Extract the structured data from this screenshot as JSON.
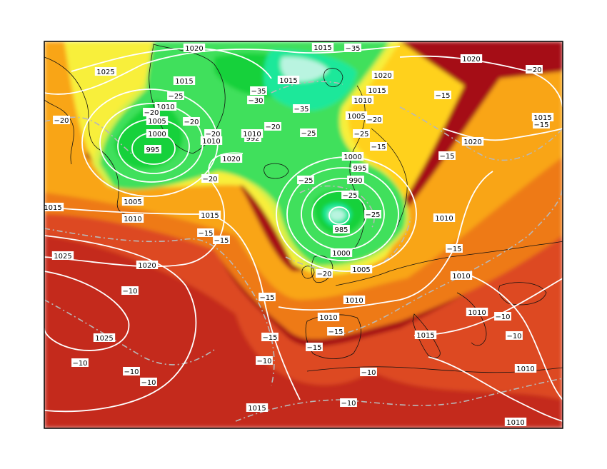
{
  "colors": {
    "field": [
      "#a50f15",
      "#c42a1d",
      "#dd4a20",
      "#ee7a18",
      "#f9a515",
      "#ffd11a",
      "#f8ef3a",
      "#d8f04a",
      "#3fe05c",
      "#12d13a",
      "#1ee89a",
      "#b9f4e0"
    ],
    "isobar": "#ffffff",
    "isotherm": "#b8b8b8",
    "coast": "#111111",
    "frame": "#000000"
  },
  "pressure_labels": [
    "1025",
    "1020",
    "1015",
    "1010",
    "1005",
    "1000",
    "995",
    "990",
    "985",
    "992"
  ],
  "temperature_labels": [
    "−10",
    "−15",
    "−20",
    "−25",
    "−30",
    "−35"
  ],
  "labels": [
    {
      "id": "p1025-nw",
      "text": "1025"
    },
    {
      "id": "p1020-top-left",
      "text": "1020"
    },
    {
      "id": "p1015-top",
      "text": "1015"
    },
    {
      "id": "t-35-top",
      "text": "−35"
    },
    {
      "id": "p1020-ne",
      "text": "1020"
    },
    {
      "id": "t-20-ne",
      "text": "−20"
    },
    {
      "id": "p1015-greenland",
      "text": "1015"
    },
    {
      "id": "p1015-b",
      "text": "1015"
    },
    {
      "id": "t-35-a",
      "text": "−35"
    },
    {
      "id": "t-30-a",
      "text": "−30"
    },
    {
      "id": "t-25-a",
      "text": "−25"
    },
    {
      "id": "p1010-a",
      "text": "1010"
    },
    {
      "id": "t-20-a",
      "text": "−20"
    },
    {
      "id": "p1005-a",
      "text": "1005"
    },
    {
      "id": "t-20-b",
      "text": "−20"
    },
    {
      "id": "t-20-c",
      "text": "−20"
    },
    {
      "id": "t-20-d",
      "text": "−20"
    },
    {
      "id": "p1000-a",
      "text": "1000"
    },
    {
      "id": "p995-a",
      "text": "995"
    },
    {
      "id": "p1010-b",
      "text": "1010"
    },
    {
      "id": "p992",
      "text": "992"
    },
    {
      "id": "p1010-c",
      "text": "1010"
    },
    {
      "id": "t-20-e",
      "text": "−20"
    },
    {
      "id": "t-35-b",
      "text": "−35"
    },
    {
      "id": "t-25-b",
      "text": "−25"
    },
    {
      "id": "p1020-b",
      "text": "1020"
    },
    {
      "id": "p1015-c",
      "text": "1015"
    },
    {
      "id": "p1010-d",
      "text": "1010"
    },
    {
      "id": "t-15-a",
      "text": "−15"
    },
    {
      "id": "p1005-b",
      "text": "1005"
    },
    {
      "id": "t-20-f",
      "text": "−20"
    },
    {
      "id": "t-25-c",
      "text": "−25"
    },
    {
      "id": "t-15-b",
      "text": "−15"
    },
    {
      "id": "p1000-b",
      "text": "1000"
    },
    {
      "id": "p995-b",
      "text": "995"
    },
    {
      "id": "p990",
      "text": "990"
    },
    {
      "id": "t-25-d",
      "text": "−25"
    },
    {
      "id": "t-25-e",
      "text": "−25"
    },
    {
      "id": "p985",
      "text": "985"
    },
    {
      "id": "p1020-c",
      "text": "1020"
    },
    {
      "id": "t-20-g",
      "text": "−20"
    },
    {
      "id": "p1015-d",
      "text": "1015"
    },
    {
      "id": "p1005-c",
      "text": "1005"
    },
    {
      "id": "p1010-e",
      "text": "1010"
    },
    {
      "id": "p1015-west",
      "text": "1015"
    },
    {
      "id": "p1015-e",
      "text": "1015"
    },
    {
      "id": "t-15-c",
      "text": "−15"
    },
    {
      "id": "t-15-d",
      "text": "−15"
    },
    {
      "id": "p1025-west",
      "text": "1025"
    },
    {
      "id": "p1020-d",
      "text": "1020"
    },
    {
      "id": "t-25-f",
      "text": "−25"
    },
    {
      "id": "p1000-c",
      "text": "1000"
    },
    {
      "id": "t-20-h",
      "text": "−20"
    },
    {
      "id": "p1005-d",
      "text": "1005"
    },
    {
      "id": "t-10-a",
      "text": "−10"
    },
    {
      "id": "t-15-e",
      "text": "−15"
    },
    {
      "id": "p1010-f",
      "text": "1010"
    },
    {
      "id": "t-15-f",
      "text": "−15"
    },
    {
      "id": "p1010-g",
      "text": "1010"
    },
    {
      "id": "p1010-h",
      "text": "1010"
    },
    {
      "id": "t-10-b",
      "text": "−10"
    },
    {
      "id": "p1010-i",
      "text": "1010"
    },
    {
      "id": "t-15-g",
      "text": "−15"
    },
    {
      "id": "p1010-j",
      "text": "1010"
    },
    {
      "id": "p1025-sw",
      "text": "1025"
    },
    {
      "id": "t-15-h",
      "text": "−15"
    },
    {
      "id": "t-15-i",
      "text": "−15"
    },
    {
      "id": "p1015-f",
      "text": "1015"
    },
    {
      "id": "t-10-c",
      "text": "−10"
    },
    {
      "id": "t-10-d",
      "text": "−10"
    },
    {
      "id": "t-10-e",
      "text": "−10"
    },
    {
      "id": "t-10-f",
      "text": "−10"
    },
    {
      "id": "t-10-g",
      "text": "−10"
    },
    {
      "id": "p1010-k",
      "text": "1010"
    },
    {
      "id": "t-10-h",
      "text": "−10"
    },
    {
      "id": "p1015-g",
      "text": "1015"
    },
    {
      "id": "t-10-i",
      "text": "−10"
    },
    {
      "id": "p1010-l",
      "text": "1010"
    },
    {
      "id": "t-15-j",
      "text": "−15"
    },
    {
      "id": "p1020-e",
      "text": "1020"
    },
    {
      "id": "t-15-k",
      "text": "−15"
    }
  ]
}
